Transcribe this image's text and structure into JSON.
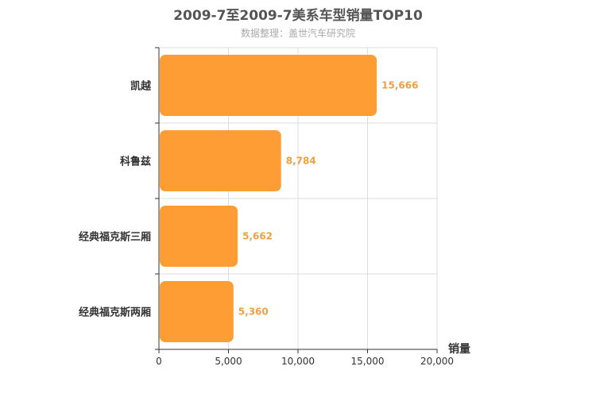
{
  "chart_data": {
    "type": "bar",
    "orientation": "horizontal",
    "title": "2009-7至2009-7美系车型销量TOP10",
    "subtitle": "数据整理：盖世汽车研究院",
    "categories": [
      "凯越",
      "科鲁兹",
      "经典福克斯三厢",
      "经典福克斯两厢"
    ],
    "values": [
      15666,
      8784,
      5662,
      5360
    ],
    "value_labels": [
      "15,666",
      "8,784",
      "5,662",
      "5,360"
    ],
    "xlabel": "销量",
    "ylabel": "",
    "xlim": [
      0,
      20000
    ],
    "xticks": [
      0,
      5000,
      10000,
      15000,
      20000
    ],
    "xtick_labels": [
      "0",
      "5,000",
      "10,000",
      "15,000",
      "20,000"
    ],
    "grid": true,
    "bar_color": "#ff9d35",
    "value_label_color": "#f0a040"
  }
}
